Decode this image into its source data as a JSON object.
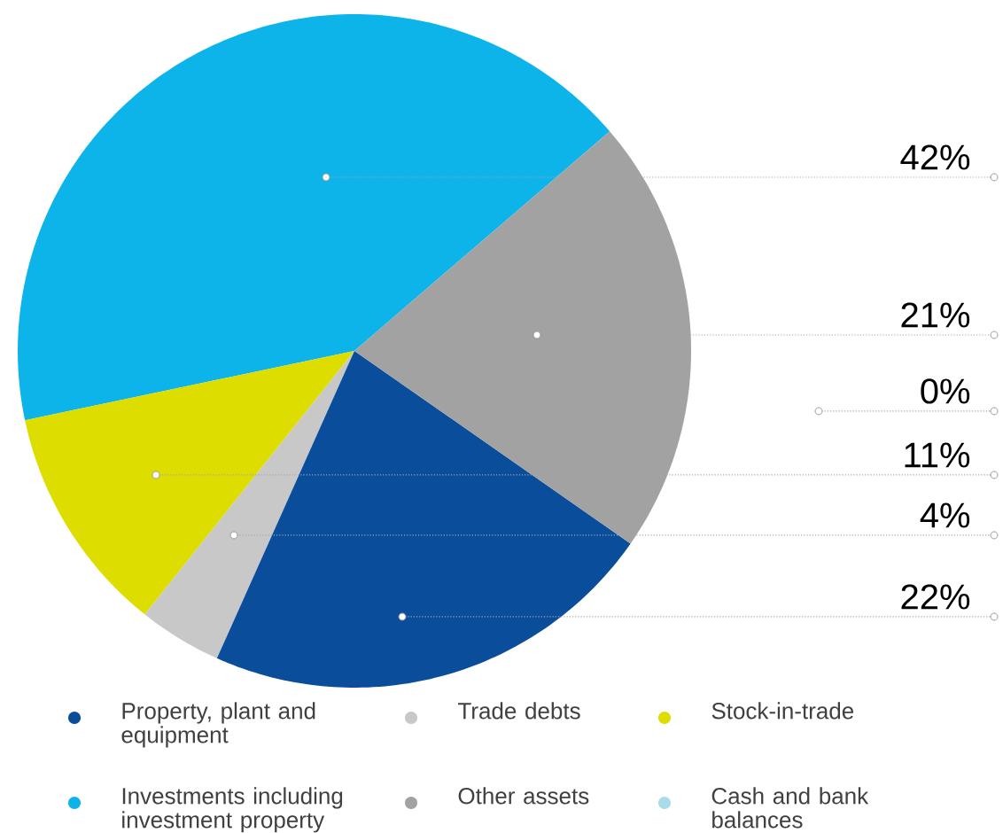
{
  "chart_data": {
    "type": "pie",
    "categories": [
      "Investments including investment property",
      "Stock-in-trade",
      "Trade debts",
      "Property, plant and equipment",
      "Other assets",
      "Cash and bank balances"
    ],
    "values": [
      42,
      11,
      4,
      22,
      21,
      0
    ],
    "value_labels": [
      "42%",
      "11%",
      "4%",
      "22%",
      "21%",
      "0%"
    ],
    "colors": [
      "#0db4ea",
      "#dddd00",
      "#c8c8c8",
      "#0a4d9b",
      "#a2a2a2",
      "#a8dce8"
    ],
    "legend": "bottom"
  }
}
